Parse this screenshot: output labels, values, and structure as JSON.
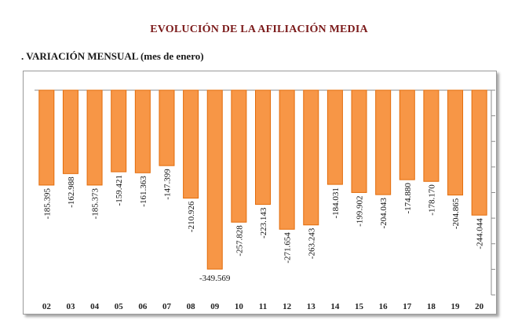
{
  "header": {
    "title": "EVOLUCIÓN DE LA AFILIACIÓN MEDIA",
    "subtitle": ". VARIACIÓN MENSUAL (mes de enero)"
  },
  "colors": {
    "bar_fill": "#f79646",
    "bar_stroke": "#e36c0a",
    "title": "#7b1a1a"
  },
  "chart_data": {
    "type": "bar",
    "title": "",
    "xlabel": "",
    "ylabel": "",
    "categories": [
      "02",
      "03",
      "04",
      "05",
      "06",
      "07",
      "08",
      "09",
      "10",
      "11",
      "12",
      "13",
      "14",
      "15",
      "16",
      "17",
      "18",
      "19",
      "20"
    ],
    "values": [
      -185395,
      -162988,
      -185373,
      -159421,
      -161363,
      -147399,
      -210926,
      -349569,
      -257828,
      -223143,
      -271654,
      -263243,
      -184031,
      -199902,
      -204043,
      -174880,
      -178170,
      -204865,
      -244044
    ],
    "data_labels": [
      "-185.395",
      "-162.988",
      "-185.373",
      "-159.421",
      "-161.363",
      "-147.399",
      "-210.926",
      "-349.569",
      "-257.828",
      "-223.143",
      "-271.654",
      "-263.243",
      "-184.031",
      "-199.902",
      "-204.043",
      "-174.880",
      "-178.170",
      "-204.865",
      "-244.044"
    ],
    "ylim": [
      -400000,
      0
    ],
    "y_ticks_labeled": false,
    "grid": false,
    "legend": "none"
  }
}
